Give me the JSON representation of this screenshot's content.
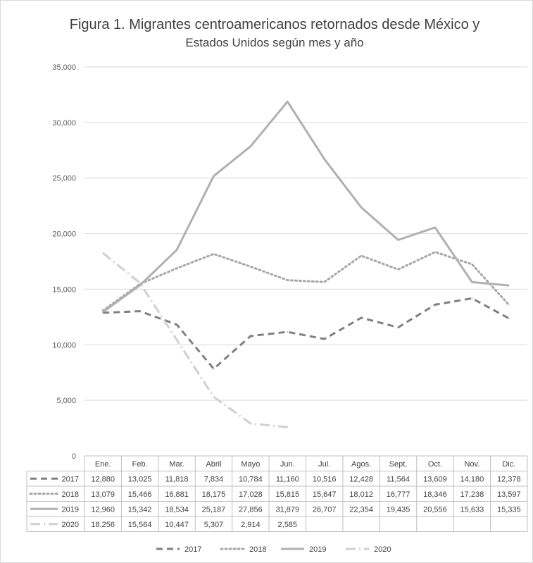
{
  "chart_data": {
    "type": "line",
    "title_line1": "Figura 1.  Migrantes centroamericanos retornados desde México y",
    "title_line2": "Estados Unidos según mes y año",
    "categories": [
      "Ene.",
      "Feb.",
      "Mar.",
      "Abril",
      "Mayo",
      "Jun.",
      "Jul.",
      "Agos.",
      "Sept.",
      "Oct.",
      "Nov.",
      "Dic."
    ],
    "y_ticks": [
      "0",
      "5,000",
      "10,000",
      "15,000",
      "20,000",
      "25,000",
      "30,000",
      "35,000"
    ],
    "ylim": [
      0,
      35000
    ],
    "grid": true,
    "legend_position": "bottom",
    "series": [
      {
        "name": "2017",
        "color": "#808080",
        "dash": "dashed",
        "values": [
          12880,
          13025,
          11818,
          7834,
          10784,
          11160,
          10516,
          12428,
          11564,
          13609,
          14180,
          12378
        ],
        "labels": [
          "12,880",
          "13,025",
          "11,818",
          "7,834",
          "10,784",
          "11,160",
          "10,516",
          "12,428",
          "11,564",
          "13,609",
          "14,180",
          "12,378"
        ]
      },
      {
        "name": "2018",
        "color": "#a6a6a6",
        "dash": "dotted",
        "values": [
          13079,
          15466,
          16881,
          18175,
          17028,
          15815,
          15647,
          18012,
          16777,
          18346,
          17238,
          13597
        ],
        "labels": [
          "13,079",
          "15,466",
          "16,881",
          "18,175",
          "17,028",
          "15,815",
          "15,647",
          "18,012",
          "16,777",
          "18,346",
          "17,238",
          "13,597"
        ]
      },
      {
        "name": "2019",
        "color": "#b0b0b0",
        "dash": "solid",
        "values": [
          12960,
          15342,
          18534,
          25187,
          27856,
          31879,
          26707,
          22354,
          19435,
          20556,
          15633,
          15335
        ],
        "labels": [
          "12,960",
          "15,342",
          "18,534",
          "25,187",
          "27,856",
          "31,879",
          "26,707",
          "22,354",
          "19,435",
          "20,556",
          "15,633",
          "15,335"
        ]
      },
      {
        "name": "2020",
        "color": "#d0d0d0",
        "dash": "dashdot",
        "values": [
          18256,
          15564,
          10447,
          5307,
          2914,
          2585,
          null,
          null,
          null,
          null,
          null,
          null
        ],
        "labels": [
          "18,256",
          "15,564",
          "10,447",
          "5,307",
          "2,914",
          "2,585",
          "",
          "",
          "",
          "",
          "",
          ""
        ]
      }
    ]
  }
}
